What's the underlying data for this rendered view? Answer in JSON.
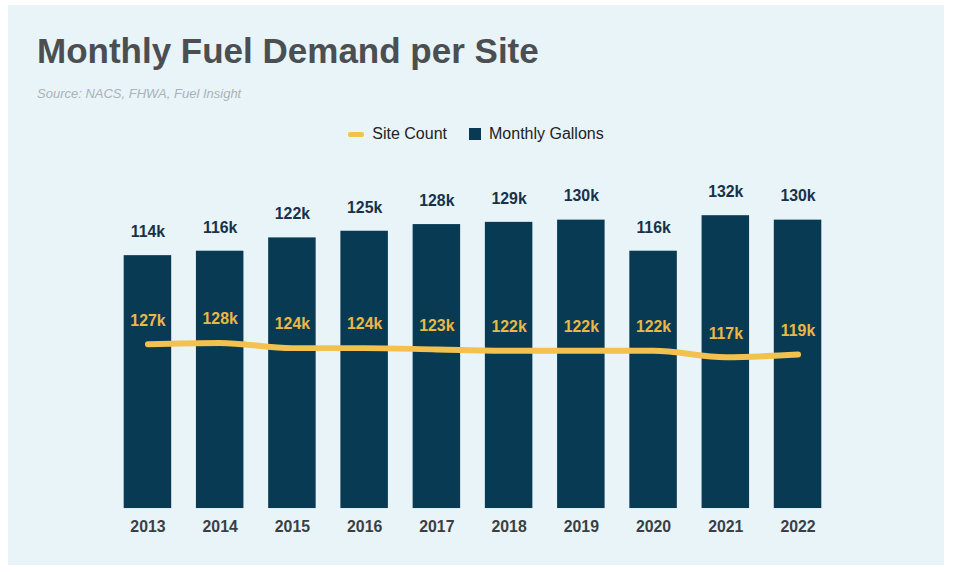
{
  "chart_data": {
    "type": "bar",
    "title": "Monthly Fuel Demand per Site",
    "subtitle": "Source: NACS, FHWA, Fuel Insight",
    "categories": [
      "2013",
      "2014",
      "2015",
      "2016",
      "2017",
      "2018",
      "2019",
      "2020",
      "2021",
      "2022"
    ],
    "series": [
      {
        "name": "Site Count",
        "type": "line",
        "axis": "y2",
        "color": "#f2c14e",
        "values": [
          127000,
          128000,
          124000,
          124000,
          123000,
          122000,
          122000,
          122000,
          117000,
          119000
        ],
        "value_labels": [
          "127k",
          "128k",
          "124k",
          "124k",
          "123k",
          "122k",
          "122k",
          "122k",
          "117k",
          "119k"
        ]
      },
      {
        "name": "Monthly Gallons",
        "type": "bar",
        "color": "#083b53",
        "values": [
          114000,
          116000,
          122000,
          125000,
          128000,
          129000,
          130000,
          116000,
          132000,
          130000
        ],
        "value_labels": [
          "114k",
          "116k",
          "122k",
          "125k",
          "128k",
          "129k",
          "130k",
          "116k",
          "132k",
          "130k"
        ]
      }
    ],
    "ylim": [
      0,
      140000
    ],
    "y2lim": [
      0,
      240000
    ],
    "data_labels": true,
    "tick_labels": "x",
    "legend": "top",
    "grid": false
  }
}
